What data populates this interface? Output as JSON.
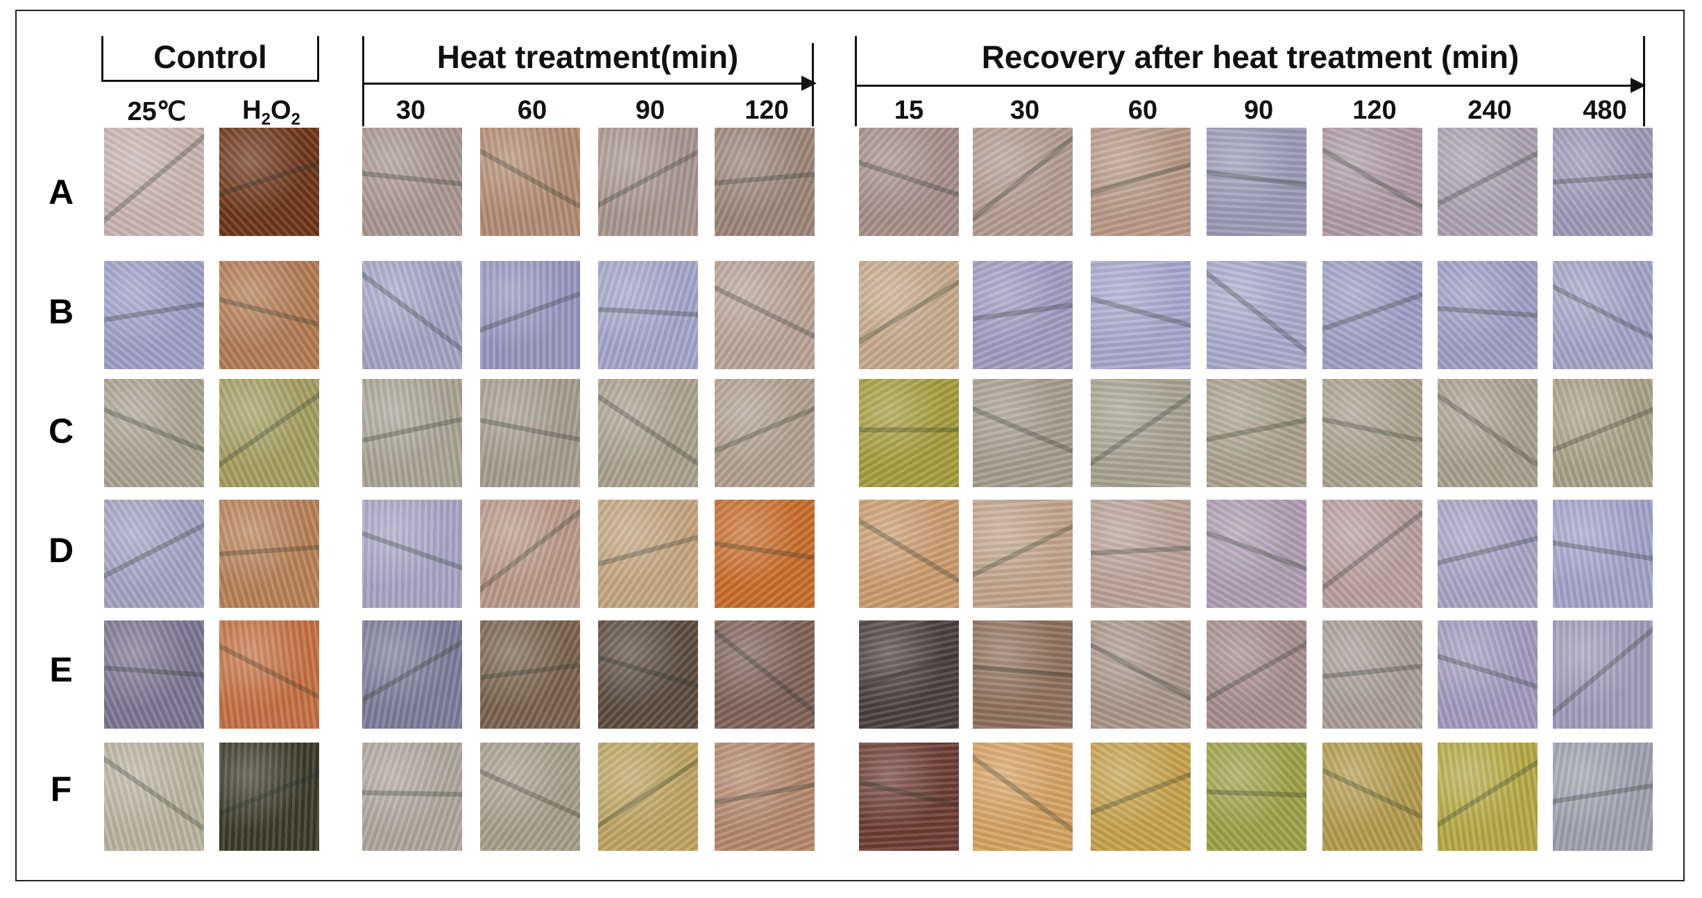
{
  "groups": {
    "control": {
      "title": "Control",
      "columns": [
        "25℃",
        "H2O2"
      ]
    },
    "heat": {
      "title": "Heat treatment(min)",
      "columns": [
        "30",
        "60",
        "90",
        "120"
      ]
    },
    "recovery": {
      "title": "Recovery after heat treatment (min)",
      "columns": [
        "15",
        "30",
        "60",
        "90",
        "120",
        "240",
        "480"
      ]
    }
  },
  "h2o2_label": {
    "main": "H",
    "sub1": "2",
    "mid": "O",
    "sub2": "2"
  },
  "rows": [
    "A",
    "B",
    "C",
    "D",
    "E",
    "F"
  ],
  "tile_colors": [
    [
      "#c8b3ae",
      "#6b3418",
      "#a8958e",
      "#b08a72",
      "#a8948d",
      "#9a8478",
      "#a48d87",
      "#b19a8d",
      "#b69887",
      "#9a98b4",
      "#ad98a3",
      "#a9a0b2",
      "#9c97b5"
    ],
    [
      "#9c9ec6",
      "#b07a52",
      "#a3a3c4",
      "#9595bd",
      "#a3a3c9",
      "#b8a296",
      "#c4a88a",
      "#9f99bf",
      "#a6a6cc",
      "#a8a8cb",
      "#9d9dc4",
      "#9d9bc3",
      "#a2a2c6"
    ],
    [
      "#a7a28f",
      "#a49c5f",
      "#a7a494",
      "#a39c8c",
      "#ab9f8d",
      "#b09e8e",
      "#a39b3c",
      "#a39c8c",
      "#a5a290",
      "#ab9f8c",
      "#a8a08d",
      "#a79f8d",
      "#a79f87"
    ],
    [
      "#a3a1c2",
      "#b67f55",
      "#a7a3c3",
      "#b89788",
      "#c2a47e",
      "#c66b29",
      "#c99a6c",
      "#c0a38b",
      "#b9a197",
      "#ae9bb2",
      "#b79e9c",
      "#a7a2c4",
      "#a1a2c8"
    ],
    [
      "#7b7490",
      "#c36f42",
      "#7c7a97",
      "#77614c",
      "#5a4a3e",
      "#7c6157",
      "#4a3d3d",
      "#8d6f5b",
      "#a89488",
      "#a48c8b",
      "#a89b94",
      "#a099bd",
      "#9f9ab8"
    ],
    [
      "#b8b39e",
      "#3a3a28",
      "#aca69a",
      "#a59d8a",
      "#bca361",
      "#b2876b",
      "#6b3b33",
      "#d4a060",
      "#c4a04b",
      "#9c9f45",
      "#b19a4b",
      "#b3a844",
      "#9d9fae"
    ]
  ]
}
